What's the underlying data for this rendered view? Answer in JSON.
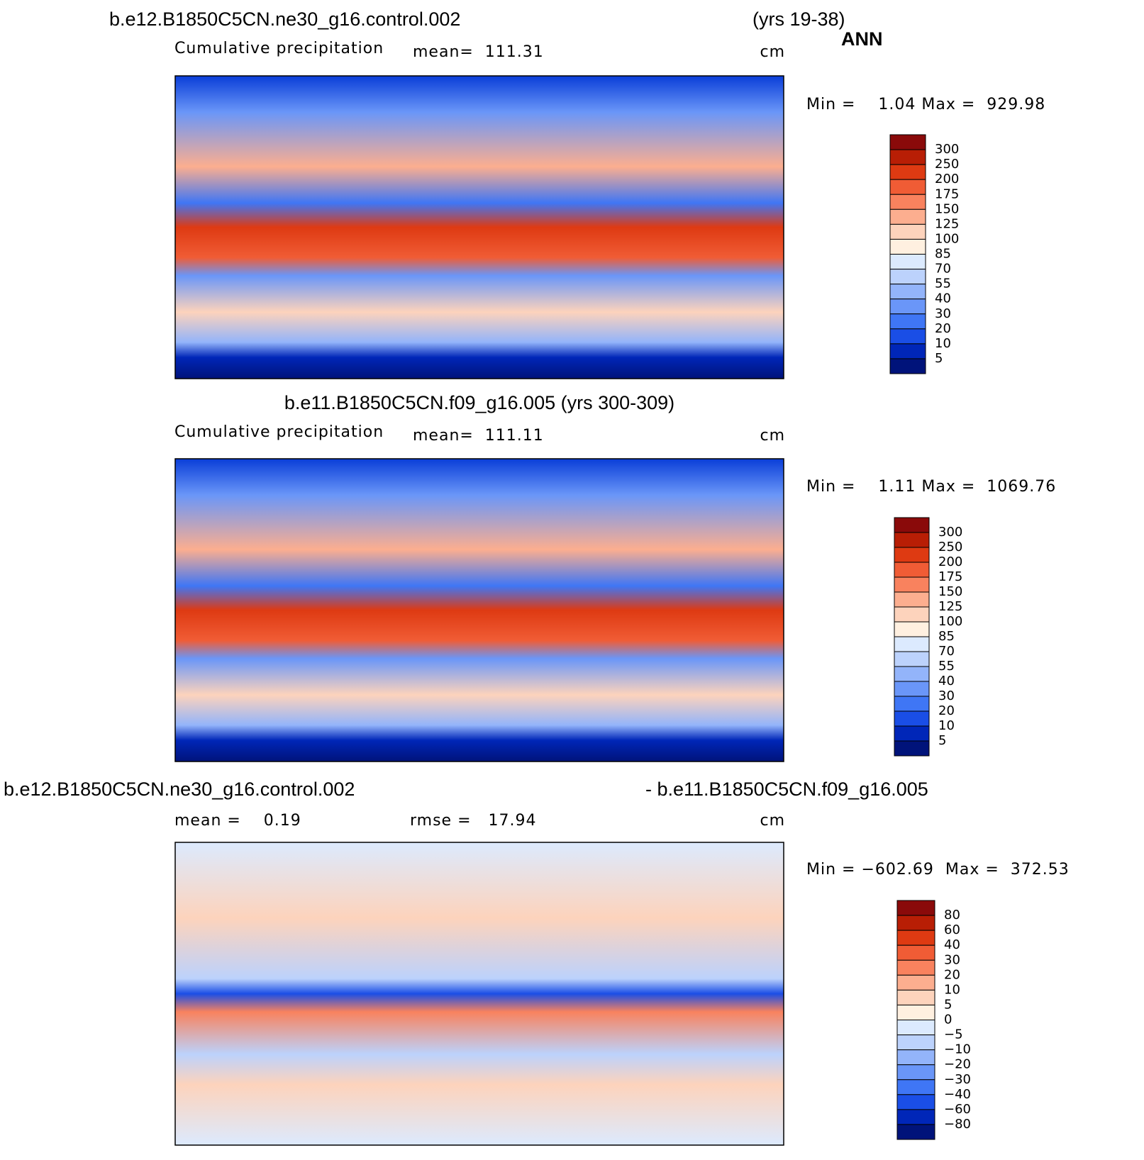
{
  "header": {
    "title": "b.e12.B1850C5CN.ne30_g16.control.002",
    "years": "(yrs 19-38)",
    "season": "ANN"
  },
  "panels": [
    {
      "subtitle": "Cumulative precipitation",
      "stat": "mean=  111.31",
      "units": "cm",
      "range": "Min =    1.04 Max =  929.98",
      "colorbar": {
        "labels": [
          "300",
          "250",
          "200",
          "175",
          "150",
          "125",
          "100",
          "85",
          "70",
          "55",
          "40",
          "30",
          "20",
          "10",
          "5"
        ],
        "colors": [
          "#8a0a0a",
          "#b81e05",
          "#de3a12",
          "#f05c35",
          "#f9825e",
          "#fcae8f",
          "#fdd3bc",
          "#fff0e0",
          "#dceafe",
          "#bcd2fc",
          "#93b4fa",
          "#6a96f8",
          "#3f76f5",
          "#1a4ee6",
          "#0026b8",
          "#00137a"
        ]
      }
    },
    {
      "title": "b.e11.B1850C5CN.f09_g16.005 (yrs 300-309)",
      "subtitle": "Cumulative precipitation",
      "stat": "mean=  111.11",
      "units": "cm",
      "range": "Min =    1.11 Max =  1069.76",
      "colorbar": {
        "labels": [
          "300",
          "250",
          "200",
          "175",
          "150",
          "125",
          "100",
          "85",
          "70",
          "55",
          "40",
          "30",
          "20",
          "10",
          "5"
        ],
        "colors": [
          "#8a0a0a",
          "#b81e05",
          "#de3a12",
          "#f05c35",
          "#f9825e",
          "#fcae8f",
          "#fdd3bc",
          "#fff0e0",
          "#dceafe",
          "#bcd2fc",
          "#93b4fa",
          "#6a96f8",
          "#3f76f5",
          "#1a4ee6",
          "#0026b8",
          "#00137a"
        ]
      }
    },
    {
      "title": "b.e12.B1850C5CN.ne30_g16.control.002",
      "title_right": "- b.e11.B1850C5CN.f09_g16.005",
      "stat": "mean =    0.19",
      "stat2": "rmse =   17.94",
      "units": "cm",
      "range": "Min = −602.69  Max =  372.53",
      "colorbar": {
        "labels": [
          "80",
          "60",
          "40",
          "30",
          "20",
          "10",
          "5",
          "0",
          "−5",
          "−10",
          "−20",
          "−30",
          "−40",
          "−60",
          "−80"
        ],
        "colors": [
          "#8a0a0a",
          "#b81e05",
          "#de3a12",
          "#f05c35",
          "#f9825e",
          "#fcae8f",
          "#fdd3bc",
          "#fff0e0",
          "#dceafe",
          "#bcd2fc",
          "#93b4fa",
          "#6a96f8",
          "#3f76f5",
          "#1a4ee6",
          "#0026b8",
          "#00137a"
        ]
      }
    }
  ]
}
